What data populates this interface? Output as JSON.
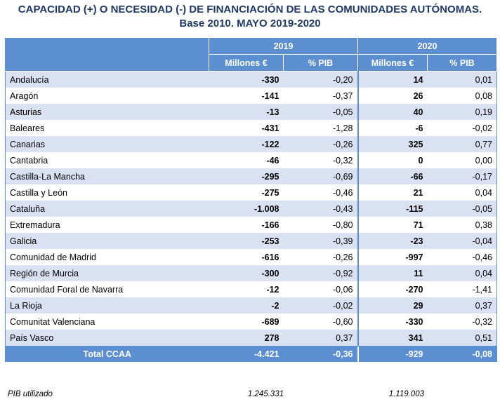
{
  "title_line1": "CAPACIDAD (+) O NECESIDAD (-) DE FINANCIACIÓN DE LAS COMUNIDADES AUTÓNOMAS.",
  "title_line2": "Base 2010. MAYO 2019-2020",
  "header": {
    "year1": "2019",
    "year2": "2020",
    "col_millones": "Millones €",
    "col_pib": "% PIB"
  },
  "rows": [
    {
      "name": "Andalucía",
      "m2019": "-330",
      "p2019": "-0,20",
      "m2020": "14",
      "p2020": "0,01"
    },
    {
      "name": "Aragón",
      "m2019": "-141",
      "p2019": "-0,37",
      "m2020": "26",
      "p2020": "0,08"
    },
    {
      "name": "Asturias",
      "m2019": "-13",
      "p2019": "-0,05",
      "m2020": "40",
      "p2020": "0,19"
    },
    {
      "name": "Baleares",
      "m2019": "-431",
      "p2019": "-1,28",
      "m2020": "-6",
      "p2020": "-0,02"
    },
    {
      "name": "Canarias",
      "m2019": "-122",
      "p2019": "-0,26",
      "m2020": "325",
      "p2020": "0,77"
    },
    {
      "name": "Cantabria",
      "m2019": "-46",
      "p2019": "-0,32",
      "m2020": "0",
      "p2020": "0,00"
    },
    {
      "name": "Castilla-La Mancha",
      "m2019": "-295",
      "p2019": "-0,69",
      "m2020": "-66",
      "p2020": "-0,17"
    },
    {
      "name": "Castilla y León",
      "m2019": "-275",
      "p2019": "-0,46",
      "m2020": "21",
      "p2020": "0,04"
    },
    {
      "name": "Cataluña",
      "m2019": "-1.008",
      "p2019": "-0,43",
      "m2020": "-115",
      "p2020": "-0,05"
    },
    {
      "name": "Extremadura",
      "m2019": "-166",
      "p2019": "-0,80",
      "m2020": "71",
      "p2020": "0,38"
    },
    {
      "name": "Galicia",
      "m2019": "-253",
      "p2019": "-0,39",
      "m2020": "-23",
      "p2020": "-0,04"
    },
    {
      "name": "Comunidad de Madrid",
      "m2019": "-616",
      "p2019": "-0,26",
      "m2020": "-997",
      "p2020": "-0,46"
    },
    {
      "name": "Región de Murcia",
      "m2019": "-300",
      "p2019": "-0,92",
      "m2020": "11",
      "p2020": "0,04"
    },
    {
      "name": "Comunidad Foral de Navarra",
      "m2019": "-12",
      "p2019": "-0,06",
      "m2020": "-270",
      "p2020": "-1,41"
    },
    {
      "name": "La Rioja",
      "m2019": "-2",
      "p2019": "-0,02",
      "m2020": "29",
      "p2020": "0,37"
    },
    {
      "name": "Comunitat Valenciana",
      "m2019": "-689",
      "p2019": "-0,60",
      "m2020": "-330",
      "p2020": "-0,32"
    },
    {
      "name": "País Vasco",
      "m2019": "278",
      "p2019": "0,37",
      "m2020": "341",
      "p2020": "0,51"
    }
  ],
  "total": {
    "name": "Total CCAA",
    "m2019": "-4.421",
    "p2019": "-0,36",
    "m2020": "-929",
    "p2020": "-0,08"
  },
  "footer": {
    "label": "PIB utilizado",
    "v2019": "1.245.331",
    "v2020": "1.119.003"
  },
  "colors": {
    "header_bg": "#5b8fd1",
    "band_bg": "#d9e1f2",
    "title": "#1f3864"
  }
}
